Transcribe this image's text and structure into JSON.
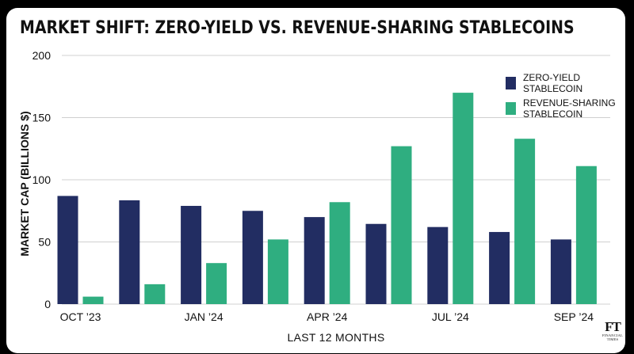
{
  "title": "MARKET SHIFT: ZERO-YIELD VS. REVENUE-SHARING STABLECOINS",
  "logo": {
    "mark": "FT",
    "sub_line1": "FINANCIAL",
    "sub_line2": "TIMES"
  },
  "colors": {
    "zero_yield": "#222d62",
    "revenue_sharing": "#2fae80",
    "grid": "#d0d0d0",
    "text": "#111111"
  },
  "chart_data": {
    "type": "bar",
    "title": "MARKET SHIFT: ZERO-YIELD VS. REVENUE-SHARING STABLECOINS",
    "xlabel": "LAST 12 MONTHS",
    "ylabel": "MARKET CAP (BILLIONS $)",
    "ylim": [
      0,
      200
    ],
    "yticks": [
      0,
      50,
      100,
      150,
      200
    ],
    "grid": true,
    "legend_position": "top-right",
    "categories": [
      "OCT '23",
      "",
      "JAN '24",
      "",
      "APR '24",
      "",
      "JUL '24",
      "",
      "SEP '24"
    ],
    "tick_labels": [
      "OCT ’23",
      "JAN ’24",
      "APR ’24",
      "JUL ’24",
      "SEP ’24"
    ],
    "tick_label_positions": [
      0,
      2,
      4,
      6,
      8
    ],
    "series": [
      {
        "name": "ZERO-YIELD STABLECOIN",
        "legend_lines": [
          "ZERO-YIELD",
          "STABLECOIN"
        ],
        "values": [
          87,
          83.5,
          79,
          75,
          70,
          64.5,
          62,
          58,
          52
        ]
      },
      {
        "name": "REVENUE-SHARING STABLECOIN",
        "legend_lines": [
          "REVENUE-SHARING",
          "STABLECOIN"
        ],
        "values": [
          6,
          16,
          33,
          52,
          82,
          127,
          170,
          133,
          111
        ]
      }
    ]
  }
}
